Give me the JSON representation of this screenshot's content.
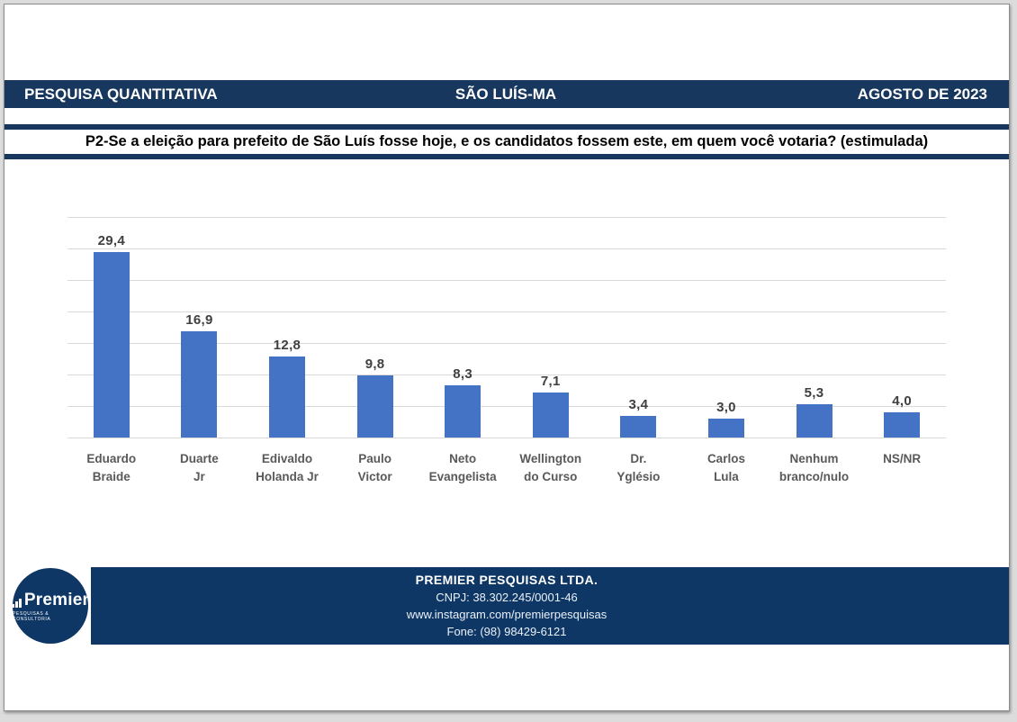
{
  "header": {
    "left": "PESQUISA QUANTITATIVA",
    "center": "SÃO LUÍS-MA",
    "right": "AGOSTO DE 2023"
  },
  "question": "P2-Se a eleição para prefeito de São Luís fosse hoje, e os candidatos fossem este, em quem você votaria? (estimulada)",
  "chart_data": {
    "type": "bar",
    "title": "",
    "xlabel": "",
    "ylabel": "",
    "categories": [
      "Eduardo Braide",
      "Duarte Jr",
      "Edivaldo Holanda Jr",
      "Paulo Victor",
      "Neto Evangelista",
      "Wellington do Curso",
      "Dr. Yglésio",
      "Carlos Lula",
      "Nenhum branco/nulo",
      "NS/NR"
    ],
    "category_label_lines": [
      "Eduardo\nBraide",
      "Duarte\nJr",
      "Edivaldo\nHolanda Jr",
      "Paulo\nVictor",
      "Neto\nEvangelista",
      "Wellington\ndo Curso",
      "Dr.\nYglésio",
      "Carlos\nLula",
      "Nenhum\nbranco/nulo",
      "NS/NR"
    ],
    "values": [
      29.4,
      16.9,
      12.8,
      9.8,
      8.3,
      7.1,
      3.4,
      3.0,
      5.3,
      4.0
    ],
    "value_labels": [
      "29,4",
      "16,9",
      "12,8",
      "9,8",
      "8,3",
      "7,1",
      "3,4",
      "3,0",
      "5,3",
      "4,0"
    ],
    "ylim": [
      0,
      35
    ],
    "gridline_step": 5,
    "grid": true,
    "legend": "none",
    "bar_color": "#4472C4",
    "gridline_color": "#D9D9D9"
  },
  "footer": {
    "company": "PREMIER PESQUISAS LTDA.",
    "cnpj": "CNPJ: 38.302.245/0001-46",
    "instagram": "www.instagram.com/premierpesquisas",
    "phone": "Fone: (98) 98429-6121",
    "logo": {
      "word": "Premier",
      "tagline": "PESQUISAS & CONSULTORIA",
      "icon": "bar-chart-icon"
    }
  },
  "colors": {
    "navy_header": "#17375E",
    "navy_footer": "#0E3765",
    "bar_blue": "#4472C4",
    "value_label": "#404040",
    "category_label": "#595959"
  }
}
